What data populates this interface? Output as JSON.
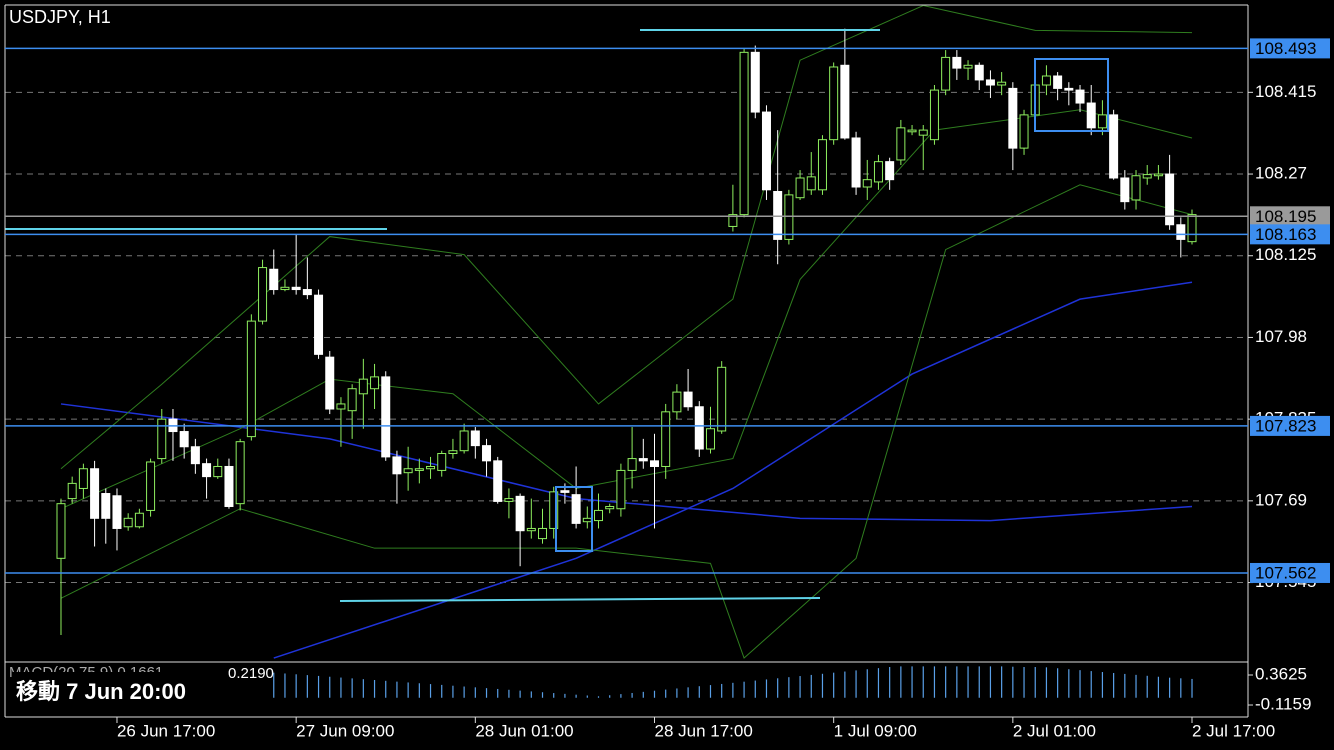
{
  "chart_data": {
    "type": "candlestick",
    "title": "USDJPY, H1",
    "cursor_label": "移動 7 Jun 20:00",
    "bull_color": "#8fef5f",
    "bear_color": "#ffffff",
    "ylim": [
      107.404,
      108.57
    ],
    "yticks": [
      108.415,
      108.27,
      108.125,
      107.98,
      107.835,
      107.69,
      107.545
    ],
    "grid": true,
    "xlim": [
      -5,
      106
    ],
    "xticks": [
      {
        "value": 5,
        "label": "26 Jun 17:00"
      },
      {
        "value": 21,
        "label": "27 Jun 09:00"
      },
      {
        "value": 37,
        "label": "28 Jun 01:00"
      },
      {
        "value": 53,
        "label": "28 Jun 17:00"
      },
      {
        "value": 69,
        "label": "1 Jul 09:00"
      },
      {
        "value": 85,
        "label": "2 Jul 01:00"
      },
      {
        "value": 101,
        "label": "2 Jul 17:00"
      }
    ],
    "open": [
      107.588,
      107.694,
      107.712,
      107.747,
      107.703,
      107.699,
      107.644,
      107.644,
      107.673,
      107.765,
      107.835,
      107.813,
      107.786,
      107.756,
      107.733,
      107.751,
      107.685,
      107.804,
      108.009,
      108.101,
      108.065,
      108.069,
      108.065,
      108.055,
      107.945,
      107.853,
      107.85,
      107.88,
      107.889,
      107.91,
      107.768,
      107.74,
      107.744,
      107.747,
      107.744,
      107.774,
      107.779,
      107.814,
      107.788,
      107.761,
      107.689,
      107.698,
      107.637,
      107.623,
      107.641,
      107.708,
      107.701,
      107.653,
      107.655,
      107.676,
      107.676,
      107.744,
      107.765,
      107.761,
      107.751,
      107.848,
      107.883,
      107.857,
      107.782,
      107.814,
      108.177,
      108.198,
      108.486,
      108.38,
      108.239,
      108.154,
      108.228,
      108.242,
      108.242,
      108.331,
      108.463,
      108.334,
      108.247,
      108.256,
      108.292,
      108.295,
      108.345,
      108.339,
      108.331,
      108.419,
      108.477,
      108.458,
      108.463,
      108.437,
      108.428,
      108.422,
      108.316,
      108.375,
      108.428,
      108.444,
      108.422,
      108.419,
      108.396,
      108.352,
      108.375,
      108.263,
      108.224,
      108.263,
      108.267,
      108.27,
      108.18,
      108.15
    ],
    "high": [
      107.694,
      107.733,
      107.756,
      107.761,
      107.712,
      107.712,
      107.668,
      107.676,
      107.765,
      107.853,
      107.853,
      107.827,
      107.8,
      107.765,
      107.765,
      107.765,
      107.8,
      108.021,
      108.118,
      108.136,
      108.083,
      108.163,
      108.122,
      108.065,
      107.956,
      107.874,
      107.897,
      107.942,
      107.933,
      107.92,
      107.779,
      107.786,
      107.765,
      107.768,
      107.779,
      107.8,
      107.827,
      107.821,
      107.8,
      107.768,
      107.712,
      107.703,
      107.694,
      107.676,
      107.715,
      107.721,
      107.751,
      107.68,
      107.703,
      107.685,
      107.756,
      107.821,
      107.8,
      107.809,
      107.862,
      107.897,
      107.924,
      107.867,
      107.857,
      107.938,
      108.251,
      108.493,
      108.498,
      108.392,
      108.348,
      108.242,
      108.277,
      108.309,
      108.339,
      108.468,
      108.528,
      108.345,
      108.295,
      108.304,
      108.299,
      108.366,
      108.357,
      108.357,
      108.428,
      108.49,
      108.49,
      108.472,
      108.468,
      108.454,
      108.451,
      108.433,
      108.384,
      108.454,
      108.463,
      108.451,
      108.433,
      108.428,
      108.428,
      108.401,
      108.384,
      108.277,
      108.277,
      108.286,
      108.286,
      108.304,
      108.193,
      108.207
    ],
    "low": [
      107.452,
      107.685,
      107.694,
      107.609,
      107.614,
      107.602,
      107.637,
      107.641,
      107.662,
      107.756,
      107.761,
      107.765,
      107.738,
      107.694,
      107.729,
      107.676,
      107.673,
      107.797,
      108.003,
      108.056,
      108.062,
      108.056,
      108.048,
      107.942,
      107.844,
      107.786,
      107.8,
      107.818,
      107.853,
      107.761,
      107.685,
      107.708,
      107.721,
      107.729,
      107.733,
      107.765,
      107.774,
      107.765,
      107.733,
      107.685,
      107.659,
      107.574,
      107.623,
      107.614,
      107.623,
      107.685,
      107.641,
      107.641,
      107.641,
      107.668,
      107.662,
      107.712,
      107.747,
      107.641,
      107.729,
      107.835,
      107.85,
      107.768,
      107.774,
      107.809,
      108.168,
      108.193,
      108.369,
      108.224,
      108.11,
      108.145,
      108.224,
      108.233,
      108.233,
      108.322,
      108.331,
      108.233,
      108.224,
      108.242,
      108.242,
      108.286,
      108.339,
      108.277,
      108.322,
      108.41,
      108.437,
      108.437,
      108.419,
      108.405,
      108.41,
      108.277,
      108.304,
      108.366,
      108.41,
      108.401,
      108.392,
      108.38,
      108.339,
      108.339,
      108.26,
      108.207,
      108.207,
      108.251,
      108.26,
      108.171,
      108.122,
      108.145
    ],
    "close": [
      107.685,
      107.721,
      107.747,
      107.659,
      107.659,
      107.641,
      107.659,
      107.668,
      107.759,
      107.835,
      107.813,
      107.786,
      107.756,
      107.733,
      107.751,
      107.68,
      107.795,
      108.009,
      108.104,
      108.065,
      108.069,
      108.065,
      108.056,
      107.95,
      107.853,
      107.862,
      107.889,
      107.906,
      107.91,
      107.768,
      107.738,
      107.747,
      107.747,
      107.751,
      107.774,
      107.779,
      107.814,
      107.788,
      107.761,
      107.689,
      107.694,
      107.637,
      107.641,
      107.641,
      107.706,
      107.705,
      107.65,
      107.659,
      107.673,
      107.68,
      107.744,
      107.765,
      107.761,
      107.751,
      107.848,
      107.883,
      107.857,
      107.782,
      107.818,
      107.927,
      108.198,
      108.486,
      108.38,
      108.242,
      108.154,
      108.233,
      108.263,
      108.265,
      108.331,
      108.46,
      108.334,
      108.247,
      108.26,
      108.292,
      108.26,
      108.352,
      108.348,
      108.348,
      108.419,
      108.477,
      108.458,
      108.463,
      108.437,
      108.428,
      108.433,
      108.316,
      108.375,
      108.428,
      108.444,
      108.422,
      108.419,
      108.396,
      108.352,
      108.375,
      108.263,
      108.221,
      108.267,
      108.269,
      108.27,
      108.18,
      108.154,
      108.198
    ],
    "lines": [
      {
        "color": "#1f33d8",
        "x": [
          0,
          24,
          46,
          66,
          83,
          101
        ],
        "values": [
          107.862,
          107.8,
          107.694,
          107.659,
          107.655,
          107.68
        ]
      },
      {
        "color": "#1f33d8",
        "x": [
          19,
          46,
          60,
          76,
          91,
          101
        ],
        "values": [
          107.411,
          107.588,
          107.712,
          107.915,
          108.048,
          108.078
        ]
      },
      {
        "color": "#2f7d1f",
        "x": [
          0,
          9,
          24,
          36,
          48,
          60,
          66,
          77,
          87,
          101
        ],
        "values": [
          107.747,
          107.897,
          108.159,
          108.127,
          107.862,
          108.048,
          108.472,
          108.569,
          108.525,
          108.521
        ]
      },
      {
        "color": "#2f7d1f",
        "x": [
          0,
          16,
          24,
          35,
          46,
          60,
          66,
          78,
          91,
          101
        ],
        "values": [
          107.676,
          107.818,
          107.906,
          107.88,
          107.712,
          107.765,
          108.083,
          108.348,
          108.384,
          108.334
        ]
      },
      {
        "color": "#2f7d1f",
        "x": [
          0,
          16,
          28,
          46,
          58,
          61,
          71,
          79,
          91,
          101
        ],
        "values": [
          107.517,
          107.676,
          107.606,
          107.606,
          107.579,
          107.411,
          107.588,
          108.136,
          108.251,
          108.198
        ]
      }
    ],
    "price_lines": [
      {
        "value": 108.493,
        "color": "#3d8ef0"
      },
      {
        "value": 108.195,
        "color": "#9a9a9a"
      },
      {
        "value": 108.163,
        "color": "#3d8ef0"
      },
      {
        "value": 107.823,
        "color": "#3d8ef0"
      },
      {
        "value": 107.562,
        "color": "#3d8ef0"
      }
    ],
    "macd": {
      "title": "MACD(20,75,9) 0.1661",
      "value_text": "0.2190",
      "color": "#5aa0e8",
      "ylim": [
        -0.307,
        0.57
      ],
      "yticks": [
        0.3625,
        -0.1159
      ],
      "values": [
        null,
        null,
        null,
        null,
        null,
        null,
        null,
        null,
        null,
        null,
        null,
        null,
        null,
        null,
        null,
        null,
        null,
        null,
        null,
        0.4,
        0.387,
        0.374,
        0.361,
        0.348,
        0.335,
        0.322,
        0.309,
        0.296,
        0.283,
        0.27,
        0.257,
        0.244,
        0.231,
        0.218,
        0.205,
        0.192,
        0.179,
        0.166,
        0.153,
        0.14,
        0.127,
        0.114,
        0.101,
        0.088,
        0.075,
        0.062,
        0.049,
        0.036,
        0.023,
        0.04,
        0.058,
        0.076,
        0.094,
        0.112,
        0.13,
        0.148,
        0.166,
        0.184,
        0.202,
        0.22,
        0.238,
        0.256,
        0.274,
        0.292,
        0.31,
        0.328,
        0.346,
        0.364,
        0.382,
        0.4,
        0.418,
        0.436,
        0.454,
        0.472,
        0.49,
        0.5,
        0.5,
        0.5,
        0.5,
        0.5,
        0.5,
        0.5,
        0.5,
        0.5,
        0.5,
        0.495,
        0.49,
        0.49,
        0.485,
        0.47,
        0.455,
        0.44,
        0.425,
        0.41,
        0.395,
        0.38,
        0.365,
        0.35,
        0.335,
        0.32,
        0.31,
        0.3
      ]
    }
  }
}
